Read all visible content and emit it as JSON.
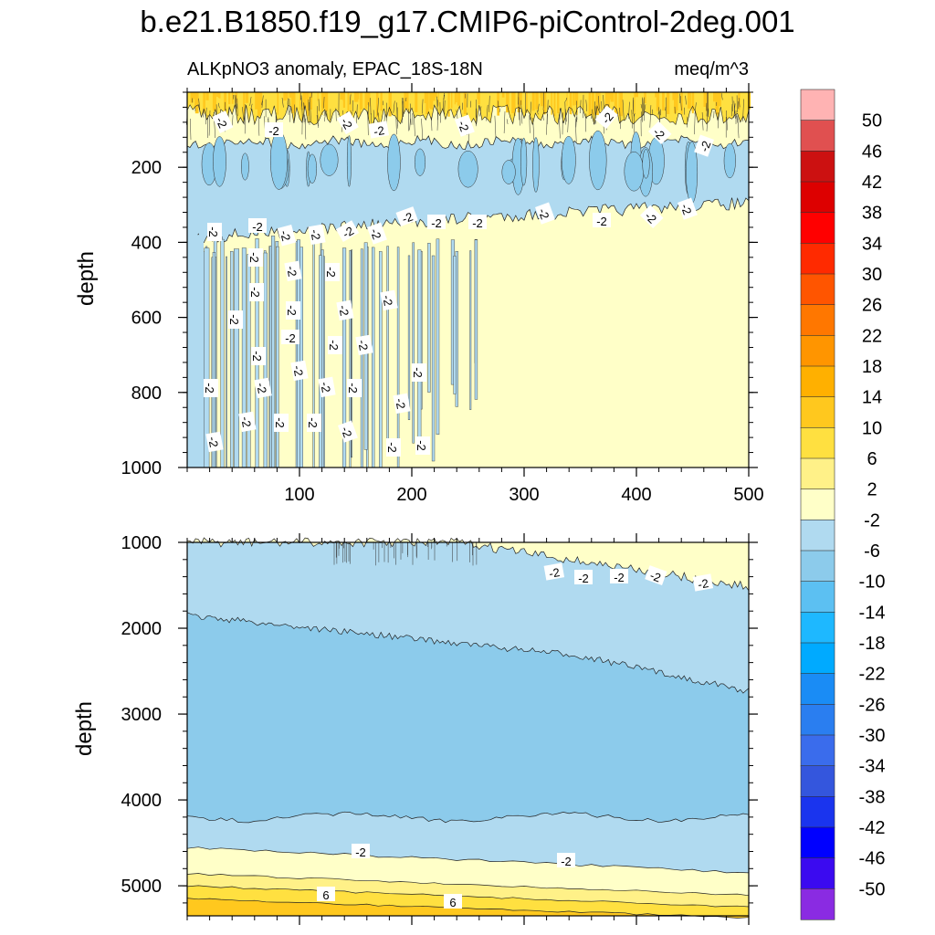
{
  "title": "b.e21.B1850.f19_g17.CMIP6-piControl-2deg.001",
  "subtitle_left": "ALKpNO3 anomaly, EPAC_18S-18N",
  "subtitle_right": "meq/m^3",
  "chart_data": [
    {
      "type": "heatmap",
      "panel": "upper",
      "title": "ALKpNO3 anomaly, EPAC_18S-18N",
      "units": "meq/m^3",
      "xlabel": "",
      "ylabel": "depth",
      "xlim": [
        0,
        500
      ],
      "ylim": [
        1000,
        0
      ],
      "xticks": [
        100,
        200,
        300,
        400,
        500
      ],
      "yticks": [
        200,
        400,
        600,
        800,
        1000
      ],
      "layers": [
        {
          "from_depth": 0,
          "to_depth": 60,
          "value_range": "2 to 10",
          "note": "warm band near surface"
        },
        {
          "from_depth": 60,
          "to_depth": 130,
          "value_range": "-2 to 2"
        },
        {
          "from_depth": 130,
          "to_depth": 330,
          "value_range": "-6 to -2"
        },
        {
          "from_depth": 330,
          "to_depth": 1000,
          "value_range": "-2 to 2",
          "note": "below 400m, x < 250 alternates with -6 to -2"
        }
      ],
      "contour_labels": [
        "-2"
      ]
    },
    {
      "type": "heatmap",
      "panel": "lower",
      "xlabel": "",
      "ylabel": "depth",
      "xlim": [
        0,
        500
      ],
      "ylim": [
        5350,
        1000
      ],
      "xticks": [
        100,
        200,
        300,
        400,
        500
      ],
      "yticks": [
        1000,
        2000,
        3000,
        4000,
        5000
      ],
      "layers": [
        {
          "from_depth": 1000,
          "to_depth": 1500,
          "value_range": "-2 to 2",
          "note": "only for x > 250"
        },
        {
          "from_depth": 1000,
          "to_depth": 2200,
          "value_range": "-6 to -2"
        },
        {
          "from_depth": 2200,
          "to_depth": 4250,
          "value_range": "-10 to -6"
        },
        {
          "from_depth": 4250,
          "to_depth": 4650,
          "value_range": "-6 to -2"
        },
        {
          "from_depth": 4650,
          "to_depth": 4950,
          "value_range": "-2 to 2"
        },
        {
          "from_depth": 4950,
          "to_depth": 5150,
          "value_range": "2 to 6"
        },
        {
          "from_depth": 5150,
          "to_depth": 5350,
          "value_range": "6 to 10"
        }
      ],
      "contour_labels": [
        "-2",
        "6"
      ]
    }
  ],
  "colorbar": {
    "labels": [
      "50",
      "46",
      "42",
      "38",
      "34",
      "30",
      "26",
      "22",
      "18",
      "14",
      "10",
      "6",
      "2",
      "-2",
      "-6",
      "-10",
      "-14",
      "-18",
      "-22",
      "-26",
      "-30",
      "-34",
      "-38",
      "-42",
      "-46",
      "-50"
    ],
    "colors": [
      "#ffb3b3",
      "#e05050",
      "#cc1111",
      "#dd0000",
      "#ff0000",
      "#ff2a00",
      "#ff5500",
      "#ff7700",
      "#ff9500",
      "#ffb000",
      "#ffc81e",
      "#ffe040",
      "#fff188",
      "#ffffc8",
      "#b0daf0",
      "#8ccbeb",
      "#5cc0f2",
      "#1eb8ff",
      "#00aaff",
      "#1a8cf5",
      "#2a7ef0",
      "#3a6cec",
      "#3456dd",
      "#1a34ee",
      "#0000ff",
      "#3b0af0",
      "#8a2be2"
    ]
  },
  "levels_colors": {
    "warm10": "#ffc81e",
    "warm6": "#ffe040",
    "warm2": "#fff188",
    "neutral": "#ffffc8",
    "cool6": "#b0daf0",
    "cool10": "#8ccbeb"
  }
}
